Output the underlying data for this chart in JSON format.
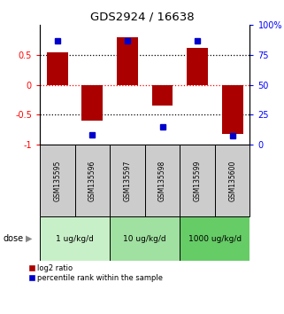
{
  "title": "GDS2924 / 16638",
  "samples": [
    "GSM135595",
    "GSM135596",
    "GSM135597",
    "GSM135598",
    "GSM135599",
    "GSM135600"
  ],
  "log2_ratio": [
    0.55,
    -0.6,
    0.8,
    -0.35,
    0.62,
    -0.82
  ],
  "percentile_rank": [
    87,
    8,
    87,
    15,
    87,
    7
  ],
  "dose_groups": [
    {
      "label": "1 ug/kg/d",
      "samples": [
        0,
        1
      ],
      "color": "#c8f0c8"
    },
    {
      "label": "10 ug/kg/d",
      "samples": [
        2,
        3
      ],
      "color": "#a0e0a0"
    },
    {
      "label": "1000 ug/kg/d",
      "samples": [
        4,
        5
      ],
      "color": "#66cc66"
    }
  ],
  "bar_color": "#aa0000",
  "dot_color": "#0000cc",
  "ylim_left": [
    -1,
    1
  ],
  "ylim_right": [
    0,
    100
  ],
  "yticks_left": [
    -1,
    -0.5,
    0,
    0.5
  ],
  "yticks_right": [
    0,
    25,
    50,
    75,
    100
  ],
  "ytick_labels_left": [
    "-1",
    "-0.5",
    "0",
    "0.5"
  ],
  "ytick_labels_right": [
    "0",
    "25",
    "50",
    "75",
    "100%"
  ],
  "hlines_black": [
    -0.5,
    0.5
  ],
  "hline_red": 0,
  "legend_red_label": "log2 ratio",
  "legend_blue_label": "percentile rank within the sample",
  "dose_label": "dose",
  "sample_box_color": "#cccccc",
  "background_color": "#ffffff"
}
